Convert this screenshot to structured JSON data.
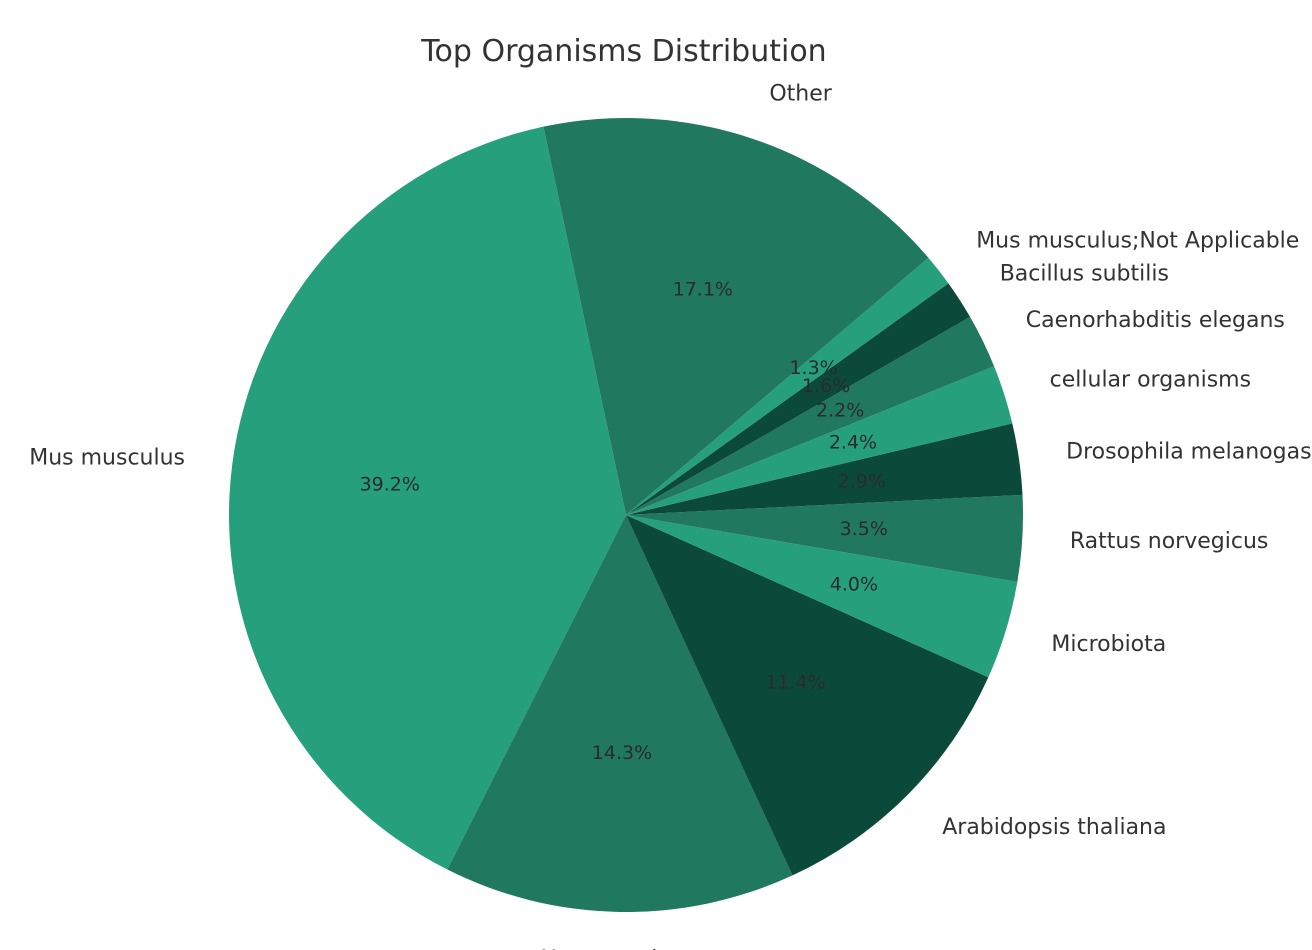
{
  "chart_data": {
    "type": "pie",
    "title": "Top Organisms Distribution",
    "start_angle": 102,
    "direction": "clockwise-from-start",
    "colors": [
      "#26a07c",
      "#20785f",
      "#0b4a3a"
    ],
    "slices": [
      {
        "label": "Mus musculus",
        "percent": 39.2,
        "pct_label": "39.2%"
      },
      {
        "label": "Homo sapiens",
        "percent": 14.3,
        "pct_label": "14.3%"
      },
      {
        "label": "Arabidopsis thaliana",
        "percent": 11.4,
        "pct_label": "11.4%"
      },
      {
        "label": "Microbiota",
        "percent": 4.0,
        "pct_label": "4.0%"
      },
      {
        "label": "Rattus norvegicus",
        "percent": 3.5,
        "pct_label": "3.5%"
      },
      {
        "label": "Drosophila melanogaster",
        "percent": 2.9,
        "pct_label": "2.9%"
      },
      {
        "label": "cellular organisms",
        "percent": 2.4,
        "pct_label": "2.4%"
      },
      {
        "label": "Caenorhabditis elegans",
        "percent": 2.2,
        "pct_label": "2.2%"
      },
      {
        "label": "Bacillus subtilis",
        "percent": 1.6,
        "pct_label": "1.6%"
      },
      {
        "label": "Mus musculus;Not Applicable",
        "percent": 1.3,
        "pct_label": "1.3%"
      },
      {
        "label": "Other",
        "percent": 17.1,
        "pct_label": "17.1%"
      }
    ]
  }
}
